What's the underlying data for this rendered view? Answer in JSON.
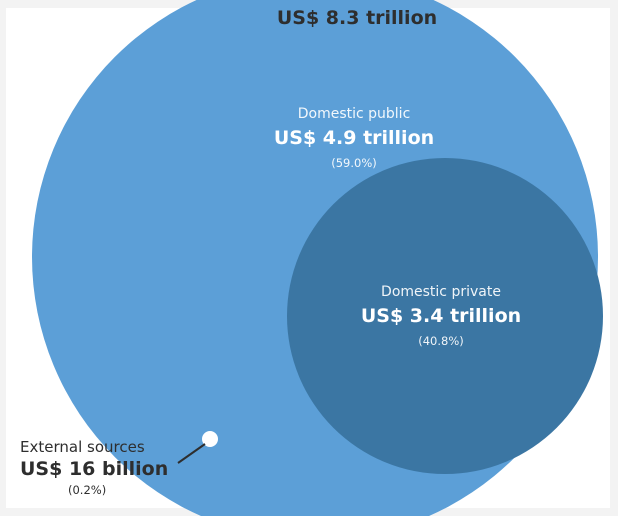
{
  "total": {
    "label": "US$ 8.3 trillion"
  },
  "domestic_public": {
    "title": "Domestic public",
    "amount": "US$ 4.9 trillion",
    "percent": "(59.0%)"
  },
  "domestic_private": {
    "title": "Domestic private",
    "amount": "US$ 3.4 trillion",
    "percent": "(40.8%)"
  },
  "external": {
    "title": "External sources",
    "amount": "US$ 16 billion",
    "percent": "(0.2%)"
  },
  "colors": {
    "outer_circle": "#5c9fd7",
    "inner_circle": "#3b76a3",
    "external_dot": "#ffffff",
    "leader_line": "#2e2e2e",
    "background": "#f3f3f3"
  }
}
